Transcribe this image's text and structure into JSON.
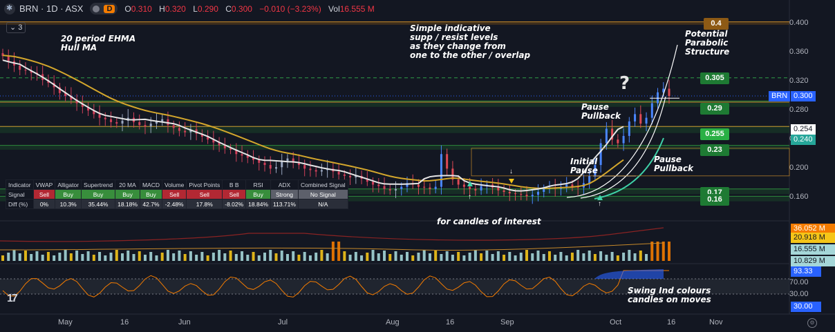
{
  "header": {
    "symbol": "BRN · 1D · ASX",
    "open_label": "O",
    "open": "0.310",
    "high_label": "H",
    "high": "0.320",
    "low_label": "L",
    "low": "0.290",
    "close_label": "C",
    "close": "0.300",
    "change": "−0.010 (−3.23%)",
    "vol_label": "Vol",
    "vol": "16.555 M",
    "badge_d": "D",
    "indicators_count": "3"
  },
  "annotations": {
    "ehma": "20 period EHMA\nHull MA",
    "supp": "Simple indicative\nsupp / resist levels\nas they change from\none to the other / overlap",
    "parabolic": "Potential\nParabolic\nStructure",
    "question": "?",
    "pause_pullback_1": "Pause\nPullback",
    "initial_pause": "Initial\nPause",
    "pause_pullback_2": "Pause\nPullback",
    "candles_note": "for candles of interest",
    "swing_note": "Swing Ind colours\ncandles on moves"
  },
  "level_labels": [
    {
      "text": "0.4",
      "price": 0.4,
      "bg": "#8d5a15"
    },
    {
      "text": "0.305",
      "price": 0.3245,
      "bg": "#1e7a33"
    },
    {
      "text": "0.29",
      "price": 0.283,
      "bg": "#1e7a33"
    },
    {
      "text": "0.255",
      "price": 0.248,
      "bg": "#2ab045"
    },
    {
      "text": "0.23",
      "price": 0.2255,
      "bg": "#1e7a33"
    },
    {
      "text": "0.17",
      "price": 0.1675,
      "bg": "#1e7a33"
    },
    {
      "text": "0.16",
      "price": 0.1575,
      "bg": "#1e7a33"
    }
  ],
  "price_axis": {
    "ticks": [
      "0.400",
      "0.360",
      "0.320",
      "0.280",
      "0.240",
      "0.200",
      "0.160"
    ],
    "tick_values": [
      0.4,
      0.36,
      0.32,
      0.28,
      0.24,
      0.2,
      0.16
    ],
    "tags": [
      {
        "text": "BRN",
        "price": 0.3,
        "bg": "#2962ff",
        "box": "left"
      },
      {
        "text": "0.300",
        "price": 0.3,
        "bg": "#2962ff"
      },
      {
        "text": "0.254",
        "price": 0.254,
        "bg": "#ffffff",
        "fg": "#131722"
      },
      {
        "text": "0.240",
        "price": 0.24,
        "bg": "#26a69a"
      }
    ]
  },
  "volume_axis": {
    "tags": [
      {
        "text": "36.052 M",
        "bg": "#f57c00"
      },
      {
        "text": "20.918 M",
        "bg": "#f5c518",
        "fg": "#131722"
      },
      {
        "text": "16.555 M",
        "bg": "#a5d6d8",
        "fg": "#131722"
      },
      {
        "text": "10.829 M",
        "bg": "#a5d6d8",
        "fg": "#131722"
      }
    ]
  },
  "osc_axis": {
    "ticks": [
      "70.00",
      "30.00"
    ],
    "tags": [
      {
        "text": "93.33",
        "bg": "#2962ff"
      },
      {
        "text": "30.00",
        "bg": "#2962ff"
      }
    ]
  },
  "time_axis": [
    "May",
    "16",
    "Jun",
    "Jul",
    "Aug",
    "16",
    "Sep",
    "Oct",
    "16",
    "Nov"
  ],
  "table": {
    "headers": [
      "Indicator",
      "VWAP",
      "Alligator",
      "Supertrend",
      "20 MA",
      "MACD",
      "Volume",
      "Pivot Points",
      "B B",
      "RSI",
      "ADX",
      "Combined Signal"
    ],
    "signal_label": "Signal",
    "signals": [
      "Sell",
      "Buy",
      "Buy",
      "Buy",
      "Buy",
      "Sell",
      "Sell",
      "Sell",
      "Buy",
      "Strong",
      "No Signal"
    ],
    "signal_kinds": [
      "sell",
      "buy",
      "buy",
      "buy",
      "buy",
      "sell",
      "sell",
      "sell",
      "buy",
      "na",
      "na"
    ],
    "diff_label": "Diff (%)",
    "diffs": [
      "0%",
      "10.3%",
      "35.44%",
      "18.18%",
      "42.7%",
      "-2.48%",
      "17.8%",
      "-8.02%",
      "18.84%",
      "113.71%",
      "N/A"
    ]
  },
  "chart_data": {
    "type": "candlestick",
    "symbol": "BRN",
    "interval": "1D",
    "exchange": "ASX",
    "ylim": [
      0.13,
      0.415
    ],
    "close_series": [
      0.355,
      0.348,
      0.342,
      0.336,
      0.335,
      0.332,
      0.33,
      0.322,
      0.318,
      0.312,
      0.304,
      0.3,
      0.295,
      0.29,
      0.285,
      0.28,
      0.275,
      0.27,
      0.268,
      0.264,
      0.262,
      0.266,
      0.27,
      0.264,
      0.26,
      0.258,
      0.262,
      0.265,
      0.268,
      0.26,
      0.256,
      0.252,
      0.25,
      0.254,
      0.248,
      0.244,
      0.24,
      0.236,
      0.232,
      0.228,
      0.226,
      0.22,
      0.218,
      0.215,
      0.212,
      0.208,
      0.205,
      0.2,
      0.202,
      0.21,
      0.214,
      0.208,
      0.205,
      0.2,
      0.198,
      0.196,
      0.198,
      0.2,
      0.196,
      0.192,
      0.19,
      0.188,
      0.19,
      0.186,
      0.182,
      0.178,
      0.176,
      0.172,
      0.17,
      0.172,
      0.175,
      0.18,
      0.178,
      0.175,
      0.174,
      0.172,
      0.175,
      0.22,
      0.2,
      0.185,
      0.178,
      0.175,
      0.172,
      0.17,
      0.176,
      0.178,
      0.174,
      0.17,
      0.168,
      0.166,
      0.165,
      0.164,
      0.162,
      0.164,
      0.168,
      0.172,
      0.174,
      0.172,
      0.175,
      0.178,
      0.175,
      0.174,
      0.18,
      0.19,
      0.205,
      0.235,
      0.255,
      0.24,
      0.235,
      0.245,
      0.265,
      0.275,
      0.262,
      0.27,
      0.29,
      0.305,
      0.31,
      0.3
    ],
    "levels": [
      0.4,
      0.305,
      0.29,
      0.255,
      0.23,
      0.17,
      0.16
    ],
    "last_price": 0.3,
    "volume_values_M": [
      36.052,
      20.918,
      16.555,
      10.829
    ],
    "oscillator": {
      "upper": 70,
      "lower": 30,
      "last": 93.33
    }
  }
}
